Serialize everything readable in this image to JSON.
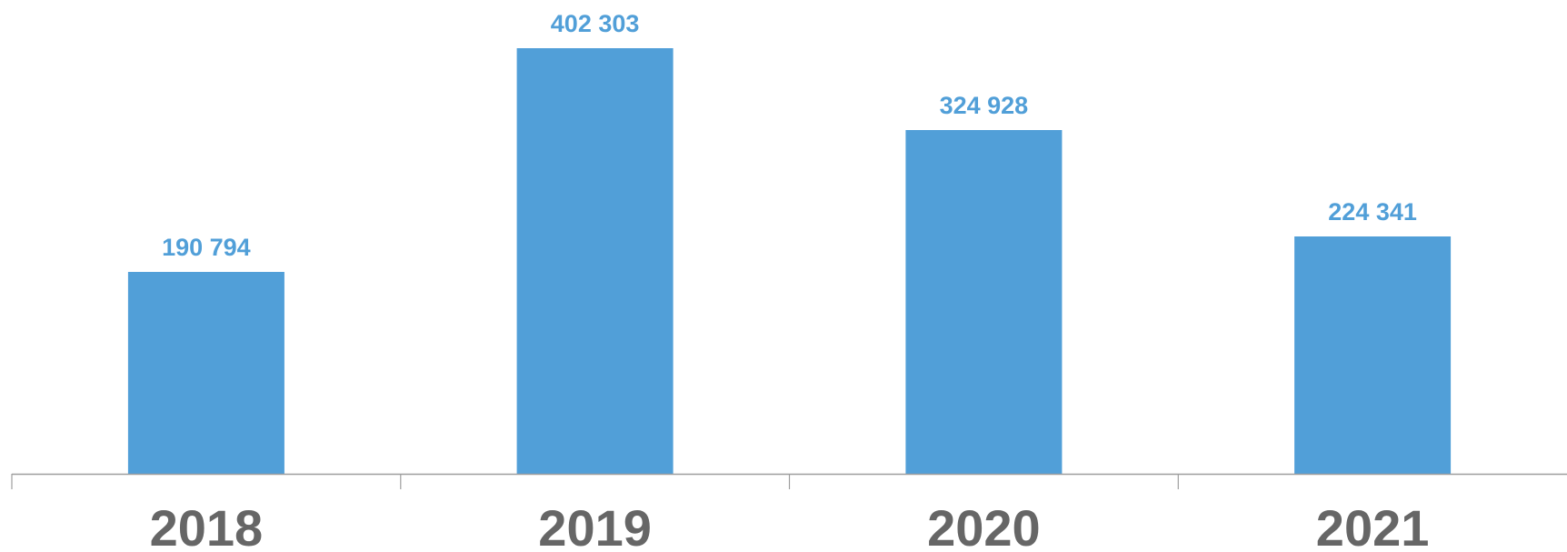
{
  "chart_data": {
    "type": "bar",
    "categories": [
      "2018",
      "2019",
      "2020",
      "2021"
    ],
    "values": [
      190794,
      402303,
      324928,
      224341
    ],
    "value_labels": [
      "190 794",
      "402 303",
      "324 928",
      "224 341"
    ],
    "ylim": [
      0,
      402303
    ],
    "grid": false,
    "legend": "none",
    "colors": {
      "bar": "#519fd8",
      "value_label": "#519fd8",
      "category_label": "#666666",
      "axis": "#9e9e9e"
    }
  }
}
